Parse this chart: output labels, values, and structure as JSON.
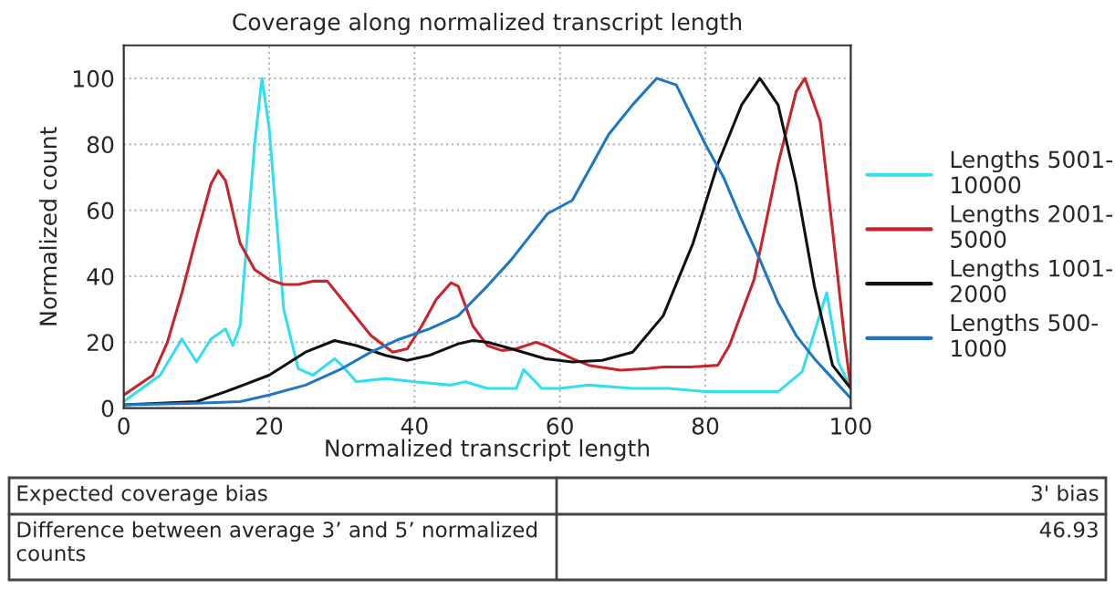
{
  "chart_data": {
    "type": "line",
    "title": "Coverage along normalized transcript length",
    "xlabel": "Normalized transcript length",
    "ylabel": "Normalized count",
    "xlim": [
      0,
      100
    ],
    "ylim": [
      0,
      110
    ],
    "xticks": [
      0,
      20,
      40,
      60,
      80,
      100
    ],
    "yticks": [
      0,
      20,
      40,
      60,
      80,
      100
    ],
    "grid": true,
    "legend": "right",
    "marker": "none",
    "line_style": "solid",
    "series": [
      {
        "name": "Lengths 5001-10000",
        "color": "#33def0",
        "x": [
          0,
          5,
          8,
          10,
          12,
          14,
          15,
          16,
          18,
          19,
          20,
          22,
          24,
          26,
          29,
          30,
          32,
          36,
          40,
          45,
          47,
          50,
          54,
          55,
          57.5,
          60,
          64,
          70,
          75,
          80,
          85,
          90,
          93.3,
          96.7,
          98.3,
          100
        ],
        "values": [
          2,
          10,
          21,
          14,
          21,
          24,
          19,
          25,
          80,
          100,
          85,
          30,
          12,
          10,
          15,
          13,
          8,
          9,
          8,
          7,
          8,
          6,
          6,
          11.7,
          6,
          6,
          7,
          6,
          6,
          5,
          5,
          5,
          11,
          35,
          14,
          6
        ]
      },
      {
        "name": "Lengths 2001-5000",
        "color": "#c9232b",
        "x": [
          0,
          4,
          6,
          8,
          10,
          12,
          13,
          14,
          16,
          18,
          20,
          22,
          24,
          26,
          28,
          30,
          34,
          37,
          39,
          41,
          43,
          45,
          46,
          48,
          50,
          52,
          54,
          56.7,
          58,
          61.7,
          64,
          68.3,
          72,
          74.2,
          78,
          81.7,
          83.3,
          86.7,
          90,
          92.5,
          93.7,
          95.8,
          97.5,
          99.2,
          100
        ],
        "values": [
          4,
          10,
          20,
          35,
          52,
          68,
          72,
          69,
          50,
          42,
          39,
          37.5,
          37.5,
          38.5,
          38.5,
          33,
          22,
          17,
          18,
          25,
          33,
          38,
          37,
          25,
          19,
          17.5,
          18,
          20,
          19,
          15,
          13,
          11.5,
          12,
          12.5,
          12.5,
          13,
          19,
          39,
          74,
          96,
          100,
          87,
          54,
          20,
          6
        ]
      },
      {
        "name": "Lengths 1001-2000",
        "color": "#111111",
        "x": [
          0,
          5,
          10,
          14,
          20,
          25,
          29,
          32,
          36,
          39,
          42,
          46,
          48,
          50,
          53.3,
          58,
          61.7,
          65.8,
          70,
          74.2,
          78.3,
          81.7,
          85,
          87.5,
          90,
          92.5,
          95,
          97.5,
          100
        ],
        "values": [
          1,
          1.5,
          2,
          5,
          10,
          17,
          20.5,
          19,
          16,
          14.5,
          16,
          19.5,
          20.5,
          20,
          18,
          15,
          14,
          14.5,
          17,
          28,
          50,
          74,
          92,
          100,
          92,
          68,
          37,
          13,
          6
        ]
      },
      {
        "name": "Lengths 500-1000",
        "color": "#1f77c4",
        "x": [
          0,
          10,
          16,
          20,
          25,
          30,
          34,
          38,
          42,
          46,
          50,
          53.3,
          58.3,
          61.7,
          66.7,
          70,
          73.3,
          76,
          80,
          82.5,
          85,
          87.5,
          90,
          92.5,
          95,
          97.5,
          100
        ],
        "values": [
          1,
          1.5,
          2,
          4,
          7,
          12,
          17,
          21,
          24,
          28,
          37,
          45,
          59,
          63,
          83,
          92,
          100,
          98,
          80,
          70,
          57,
          45,
          32,
          22,
          15,
          9,
          3
        ]
      }
    ],
    "annotations": [
      "Expected coverage bias",
      "3' bias",
      "Difference between average 3’ and 5’ normalized counts",
      "46.93"
    ]
  }
}
